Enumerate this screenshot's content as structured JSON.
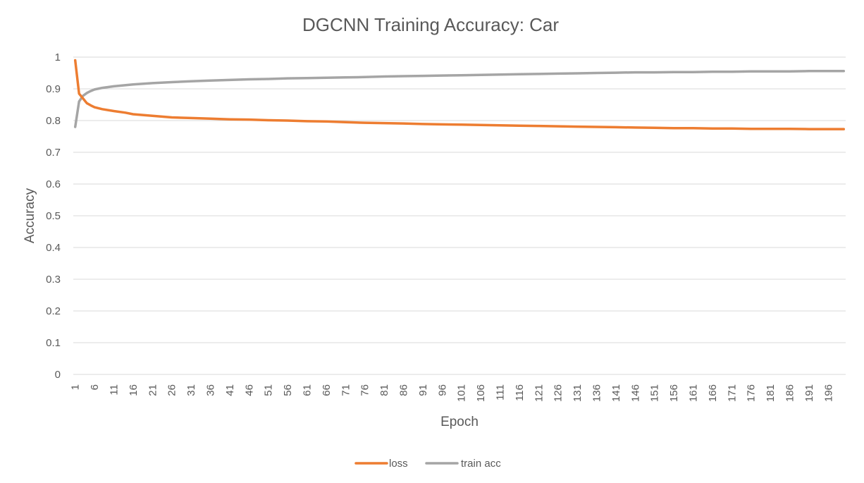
{
  "chart_data": {
    "type": "line",
    "title": "DGCNN Training Accuracy: Car",
    "xlabel": "Epoch",
    "ylabel": "Accuracy",
    "ylim": [
      0,
      1
    ],
    "yticks": [
      "0",
      "0.1",
      "0.2",
      "0.3",
      "0.4",
      "0.5",
      "0.6",
      "0.7",
      "0.8",
      "0.9",
      "1"
    ],
    "x_start": 1,
    "x_end": 200,
    "xticks": [
      "1",
      "6",
      "11",
      "16",
      "21",
      "26",
      "31",
      "36",
      "41",
      "46",
      "51",
      "56",
      "61",
      "66",
      "71",
      "76",
      "81",
      "86",
      "91",
      "96",
      "101",
      "106",
      "111",
      "116",
      "121",
      "126",
      "131",
      "136",
      "141",
      "146",
      "151",
      "156",
      "161",
      "166",
      "171",
      "176",
      "181",
      "186",
      "191",
      "196"
    ],
    "grid": true,
    "legend_position": "bottom",
    "series": [
      {
        "name": "loss",
        "color": "#ed7d31",
        "points": [
          [
            1,
            0.99
          ],
          [
            2,
            0.885
          ],
          [
            3,
            0.87
          ],
          [
            4,
            0.855
          ],
          [
            5,
            0.848
          ],
          [
            6,
            0.842
          ],
          [
            8,
            0.836
          ],
          [
            11,
            0.83
          ],
          [
            14,
            0.825
          ],
          [
            16,
            0.82
          ],
          [
            21,
            0.815
          ],
          [
            26,
            0.81
          ],
          [
            31,
            0.808
          ],
          [
            36,
            0.806
          ],
          [
            41,
            0.804
          ],
          [
            46,
            0.803
          ],
          [
            51,
            0.801
          ],
          [
            56,
            0.8
          ],
          [
            61,
            0.798
          ],
          [
            66,
            0.797
          ],
          [
            71,
            0.795
          ],
          [
            76,
            0.793
          ],
          [
            81,
            0.792
          ],
          [
            86,
            0.791
          ],
          [
            91,
            0.789
          ],
          [
            96,
            0.788
          ],
          [
            101,
            0.787
          ],
          [
            106,
            0.786
          ],
          [
            111,
            0.785
          ],
          [
            116,
            0.784
          ],
          [
            121,
            0.783
          ],
          [
            126,
            0.782
          ],
          [
            131,
            0.781
          ],
          [
            136,
            0.78
          ],
          [
            141,
            0.779
          ],
          [
            146,
            0.778
          ],
          [
            151,
            0.777
          ],
          [
            156,
            0.776
          ],
          [
            161,
            0.776
          ],
          [
            166,
            0.775
          ],
          [
            171,
            0.775
          ],
          [
            176,
            0.774
          ],
          [
            181,
            0.774
          ],
          [
            186,
            0.774
          ],
          [
            191,
            0.773
          ],
          [
            196,
            0.773
          ],
          [
            200,
            0.773
          ]
        ]
      },
      {
        "name": "train acc",
        "color": "#a5a5a5",
        "points": [
          [
            1,
            0.78
          ],
          [
            2,
            0.86
          ],
          [
            3,
            0.878
          ],
          [
            4,
            0.887
          ],
          [
            5,
            0.893
          ],
          [
            6,
            0.898
          ],
          [
            8,
            0.903
          ],
          [
            11,
            0.908
          ],
          [
            16,
            0.914
          ],
          [
            21,
            0.918
          ],
          [
            26,
            0.921
          ],
          [
            31,
            0.924
          ],
          [
            36,
            0.926
          ],
          [
            41,
            0.928
          ],
          [
            46,
            0.93
          ],
          [
            51,
            0.931
          ],
          [
            56,
            0.933
          ],
          [
            61,
            0.934
          ],
          [
            66,
            0.935
          ],
          [
            71,
            0.936
          ],
          [
            76,
            0.937
          ],
          [
            81,
            0.939
          ],
          [
            86,
            0.94
          ],
          [
            91,
            0.941
          ],
          [
            96,
            0.942
          ],
          [
            101,
            0.943
          ],
          [
            106,
            0.944
          ],
          [
            111,
            0.945
          ],
          [
            116,
            0.946
          ],
          [
            121,
            0.947
          ],
          [
            126,
            0.948
          ],
          [
            131,
            0.949
          ],
          [
            136,
            0.95
          ],
          [
            141,
            0.951
          ],
          [
            146,
            0.952
          ],
          [
            151,
            0.952
          ],
          [
            156,
            0.953
          ],
          [
            161,
            0.953
          ],
          [
            166,
            0.954
          ],
          [
            171,
            0.954
          ],
          [
            176,
            0.955
          ],
          [
            181,
            0.955
          ],
          [
            186,
            0.955
          ],
          [
            191,
            0.956
          ],
          [
            196,
            0.956
          ],
          [
            200,
            0.956
          ]
        ]
      }
    ]
  }
}
